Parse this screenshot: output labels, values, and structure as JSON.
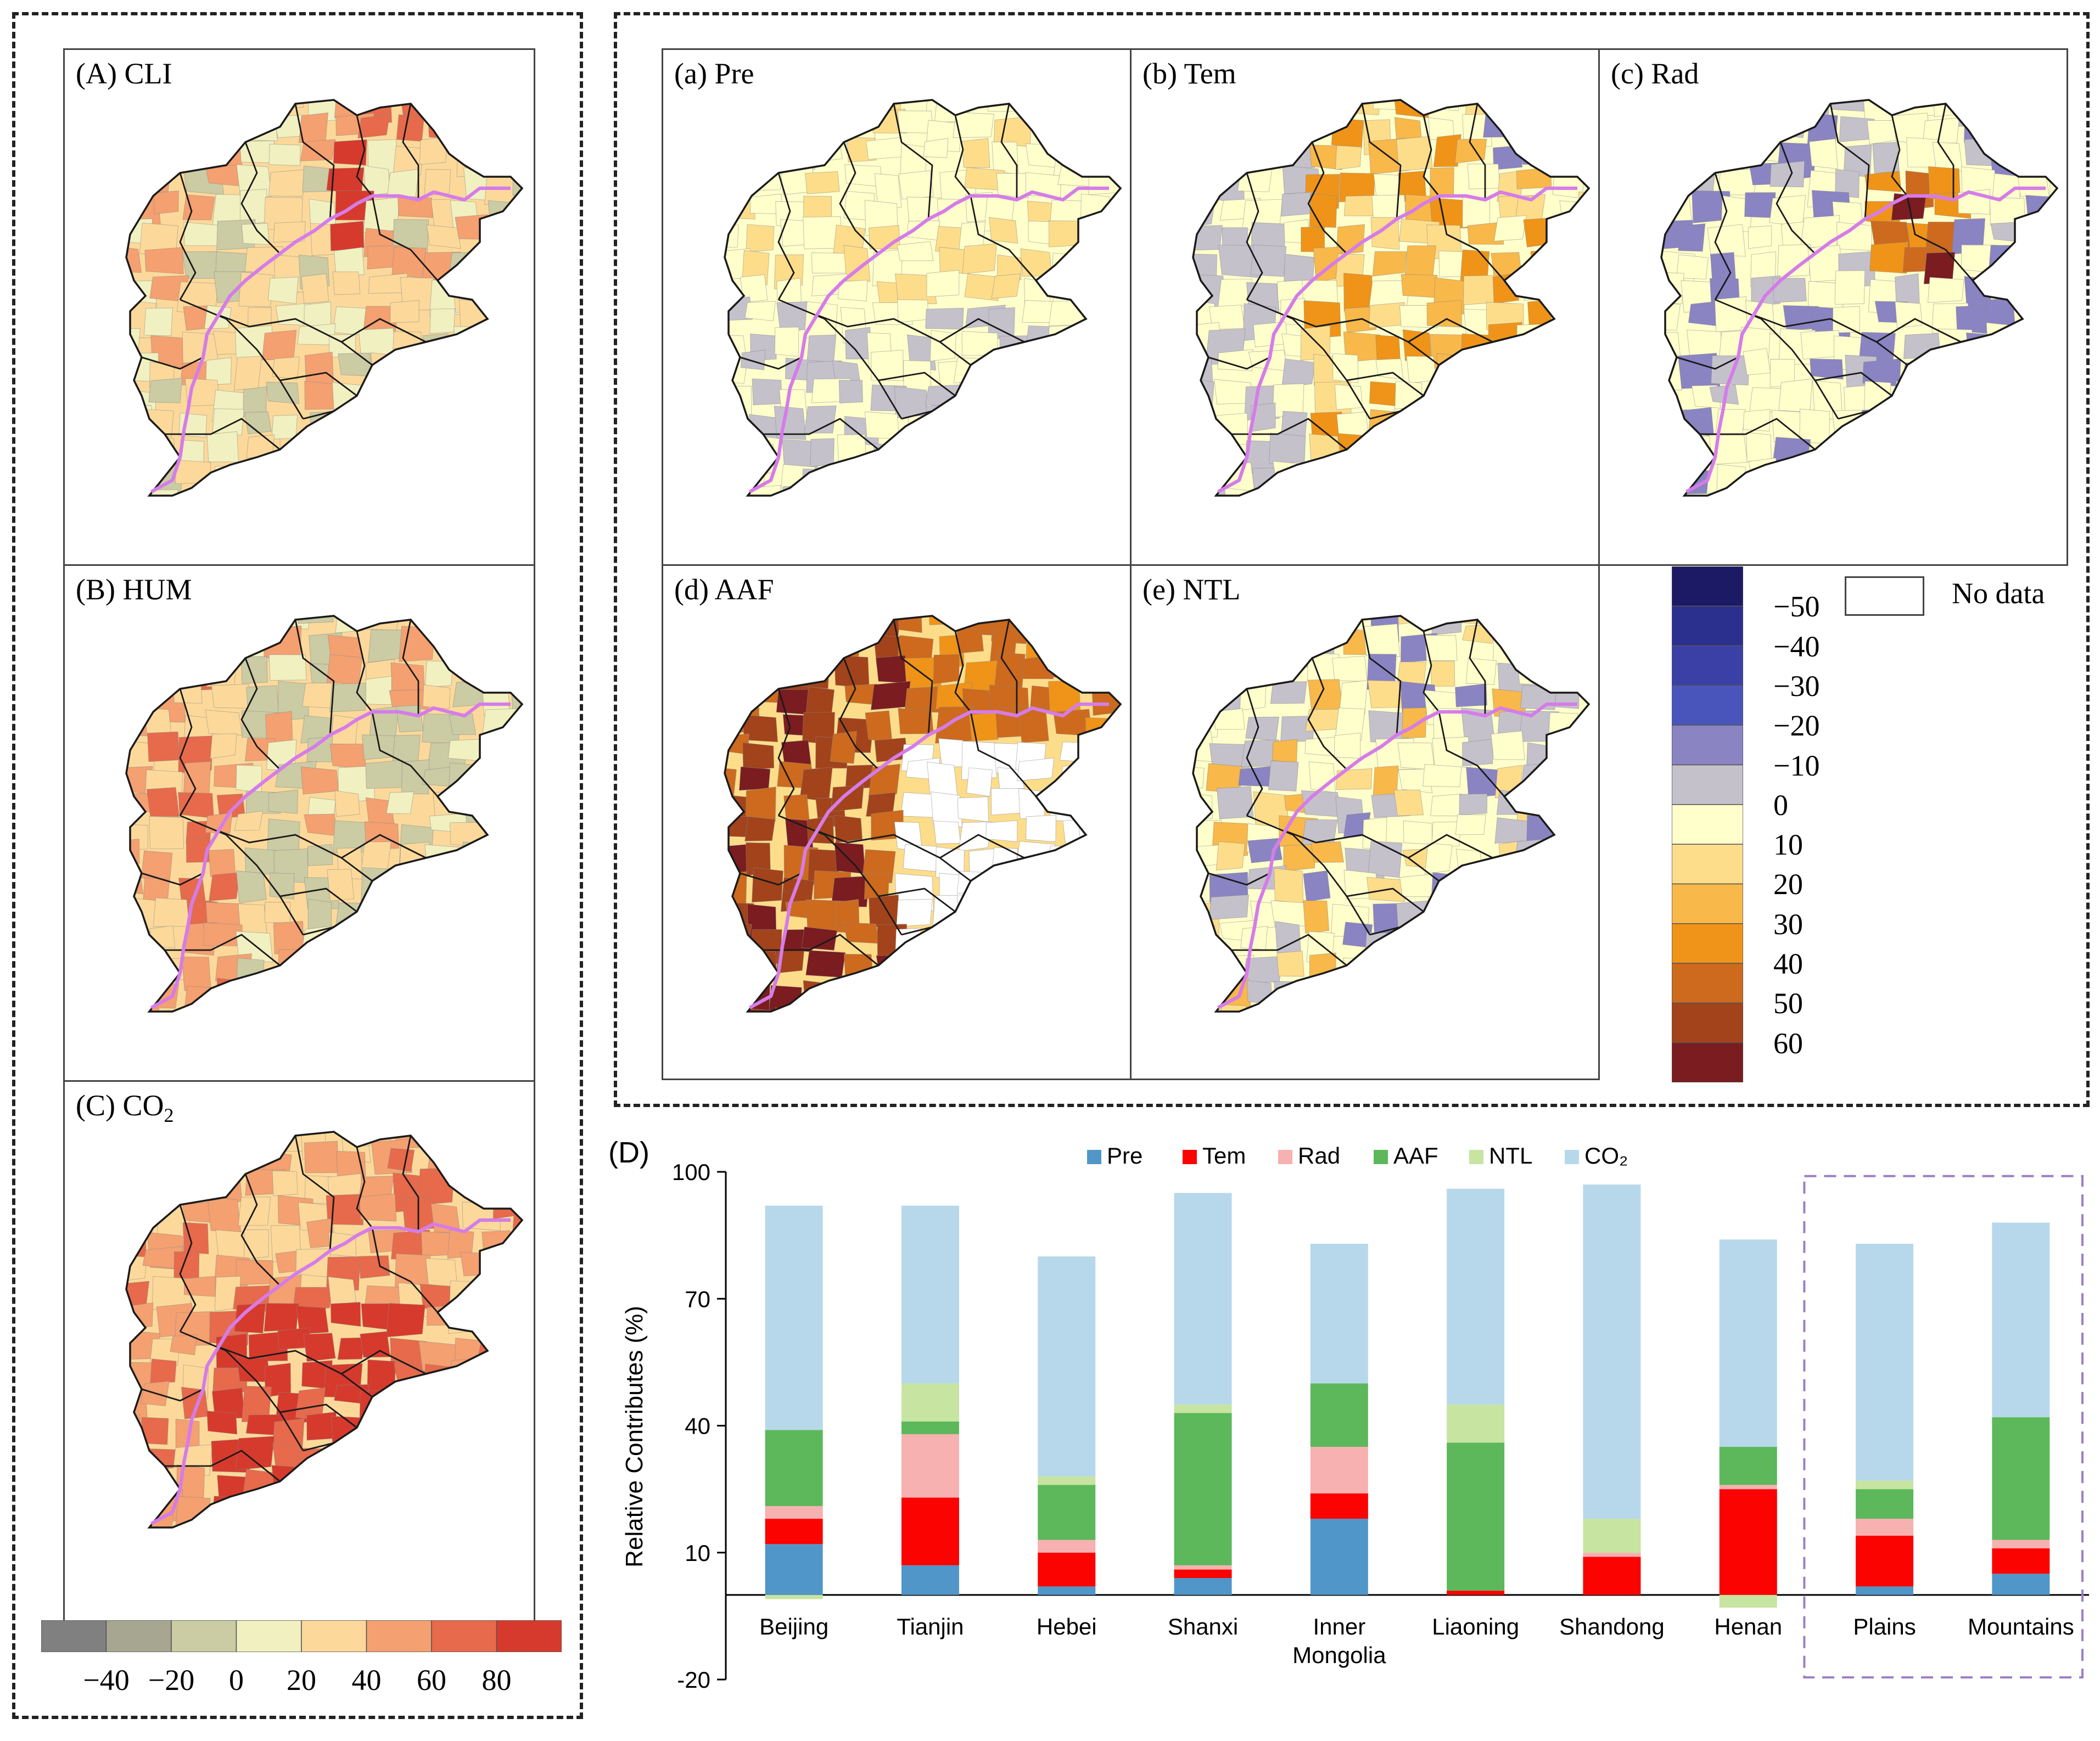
{
  "colors": {
    "cli_scale": [
      "#808080",
      "#a7a690",
      "#cbcba4",
      "#f1f0c0",
      "#fcd99a",
      "#f4a070",
      "#e66a4b",
      "#d63a2d"
    ],
    "div_scale": [
      "#1c1a64",
      "#2b2f8e",
      "#3b40a6",
      "#4a55bc",
      "#8a84c2",
      "#c4c1cb",
      "#ffffcc",
      "#fedd8a",
      "#f8b84a",
      "#ef9418",
      "#cd6a1e",
      "#a2431b",
      "#7a1c20"
    ],
    "boundary": "#d57ce9",
    "series": {
      "Pre": "#5196c9",
      "Tem": "#fa0301",
      "Rad": "#f6b1b0",
      "AAF": "#5cb85a",
      "NTL": "#c7e4a1",
      "CO2": "#b7d8ea"
    }
  },
  "left_panels": [
    {
      "id": "cli",
      "prefix": "(A) ",
      "title": "CLI",
      "sub": ""
    },
    {
      "id": "hum",
      "prefix": "(B) ",
      "title": "HUM",
      "sub": ""
    },
    {
      "id": "co2",
      "prefix": "(C) ",
      "title": "CO",
      "sub": "2"
    }
  ],
  "left_legend": {
    "ticks": [
      "−40",
      "−20",
      "0",
      "20",
      "40",
      "60",
      "80"
    ]
  },
  "right_panels": [
    {
      "id": "pre",
      "label": "(a) Pre"
    },
    {
      "id": "tem",
      "label": "(b) Tem"
    },
    {
      "id": "rad",
      "label": "(c) Rad"
    },
    {
      "id": "aaf",
      "label": "(d) AAF"
    },
    {
      "id": "ntl",
      "label": "(e) NTL"
    }
  ],
  "right_legend": {
    "nodata": "No data",
    "ticks": [
      "−50",
      "−40",
      "−30",
      "−20",
      "−10",
      "0",
      "10",
      "20",
      "30",
      "40",
      "50",
      "60"
    ]
  },
  "chart_data": {
    "type": "bar",
    "stacked": true,
    "panel_label": "(D)",
    "ylabel": "Relative Contributes (%)",
    "ylim": [
      -20,
      100
    ],
    "yticks": [
      -20,
      10,
      40,
      70,
      100
    ],
    "legend": [
      "Pre",
      "Tem",
      "Rad",
      "AAF",
      "NTL",
      "CO₂"
    ],
    "categories": [
      "Beijing",
      "Tianjin",
      "Hebei",
      "Shanxi",
      "Inner\nMongolia",
      "Liaoning",
      "Shandong",
      "Henan",
      "Plains",
      "Mountains"
    ],
    "highlight_group": [
      "Plains",
      "Mountains"
    ],
    "series": [
      {
        "name": "Pre",
        "values": [
          12,
          7,
          2,
          4,
          18,
          0,
          0,
          0,
          2,
          5
        ]
      },
      {
        "name": "Tem",
        "values": [
          6,
          16,
          8,
          2,
          6,
          1,
          9,
          25,
          12,
          6
        ]
      },
      {
        "name": "Rad",
        "values": [
          3,
          15,
          3,
          1,
          11,
          0,
          1,
          1,
          4,
          2
        ]
      },
      {
        "name": "AAF",
        "values": [
          18,
          3,
          13,
          36,
          15,
          35,
          0,
          9,
          7,
          29
        ]
      },
      {
        "name": "NTL",
        "values": [
          -1,
          9,
          2,
          2,
          0,
          9,
          8,
          -3,
          2,
          0
        ]
      },
      {
        "name": "CO2",
        "values": [
          53,
          42,
          52,
          50,
          33,
          51,
          79,
          49,
          56,
          46
        ]
      }
    ]
  }
}
